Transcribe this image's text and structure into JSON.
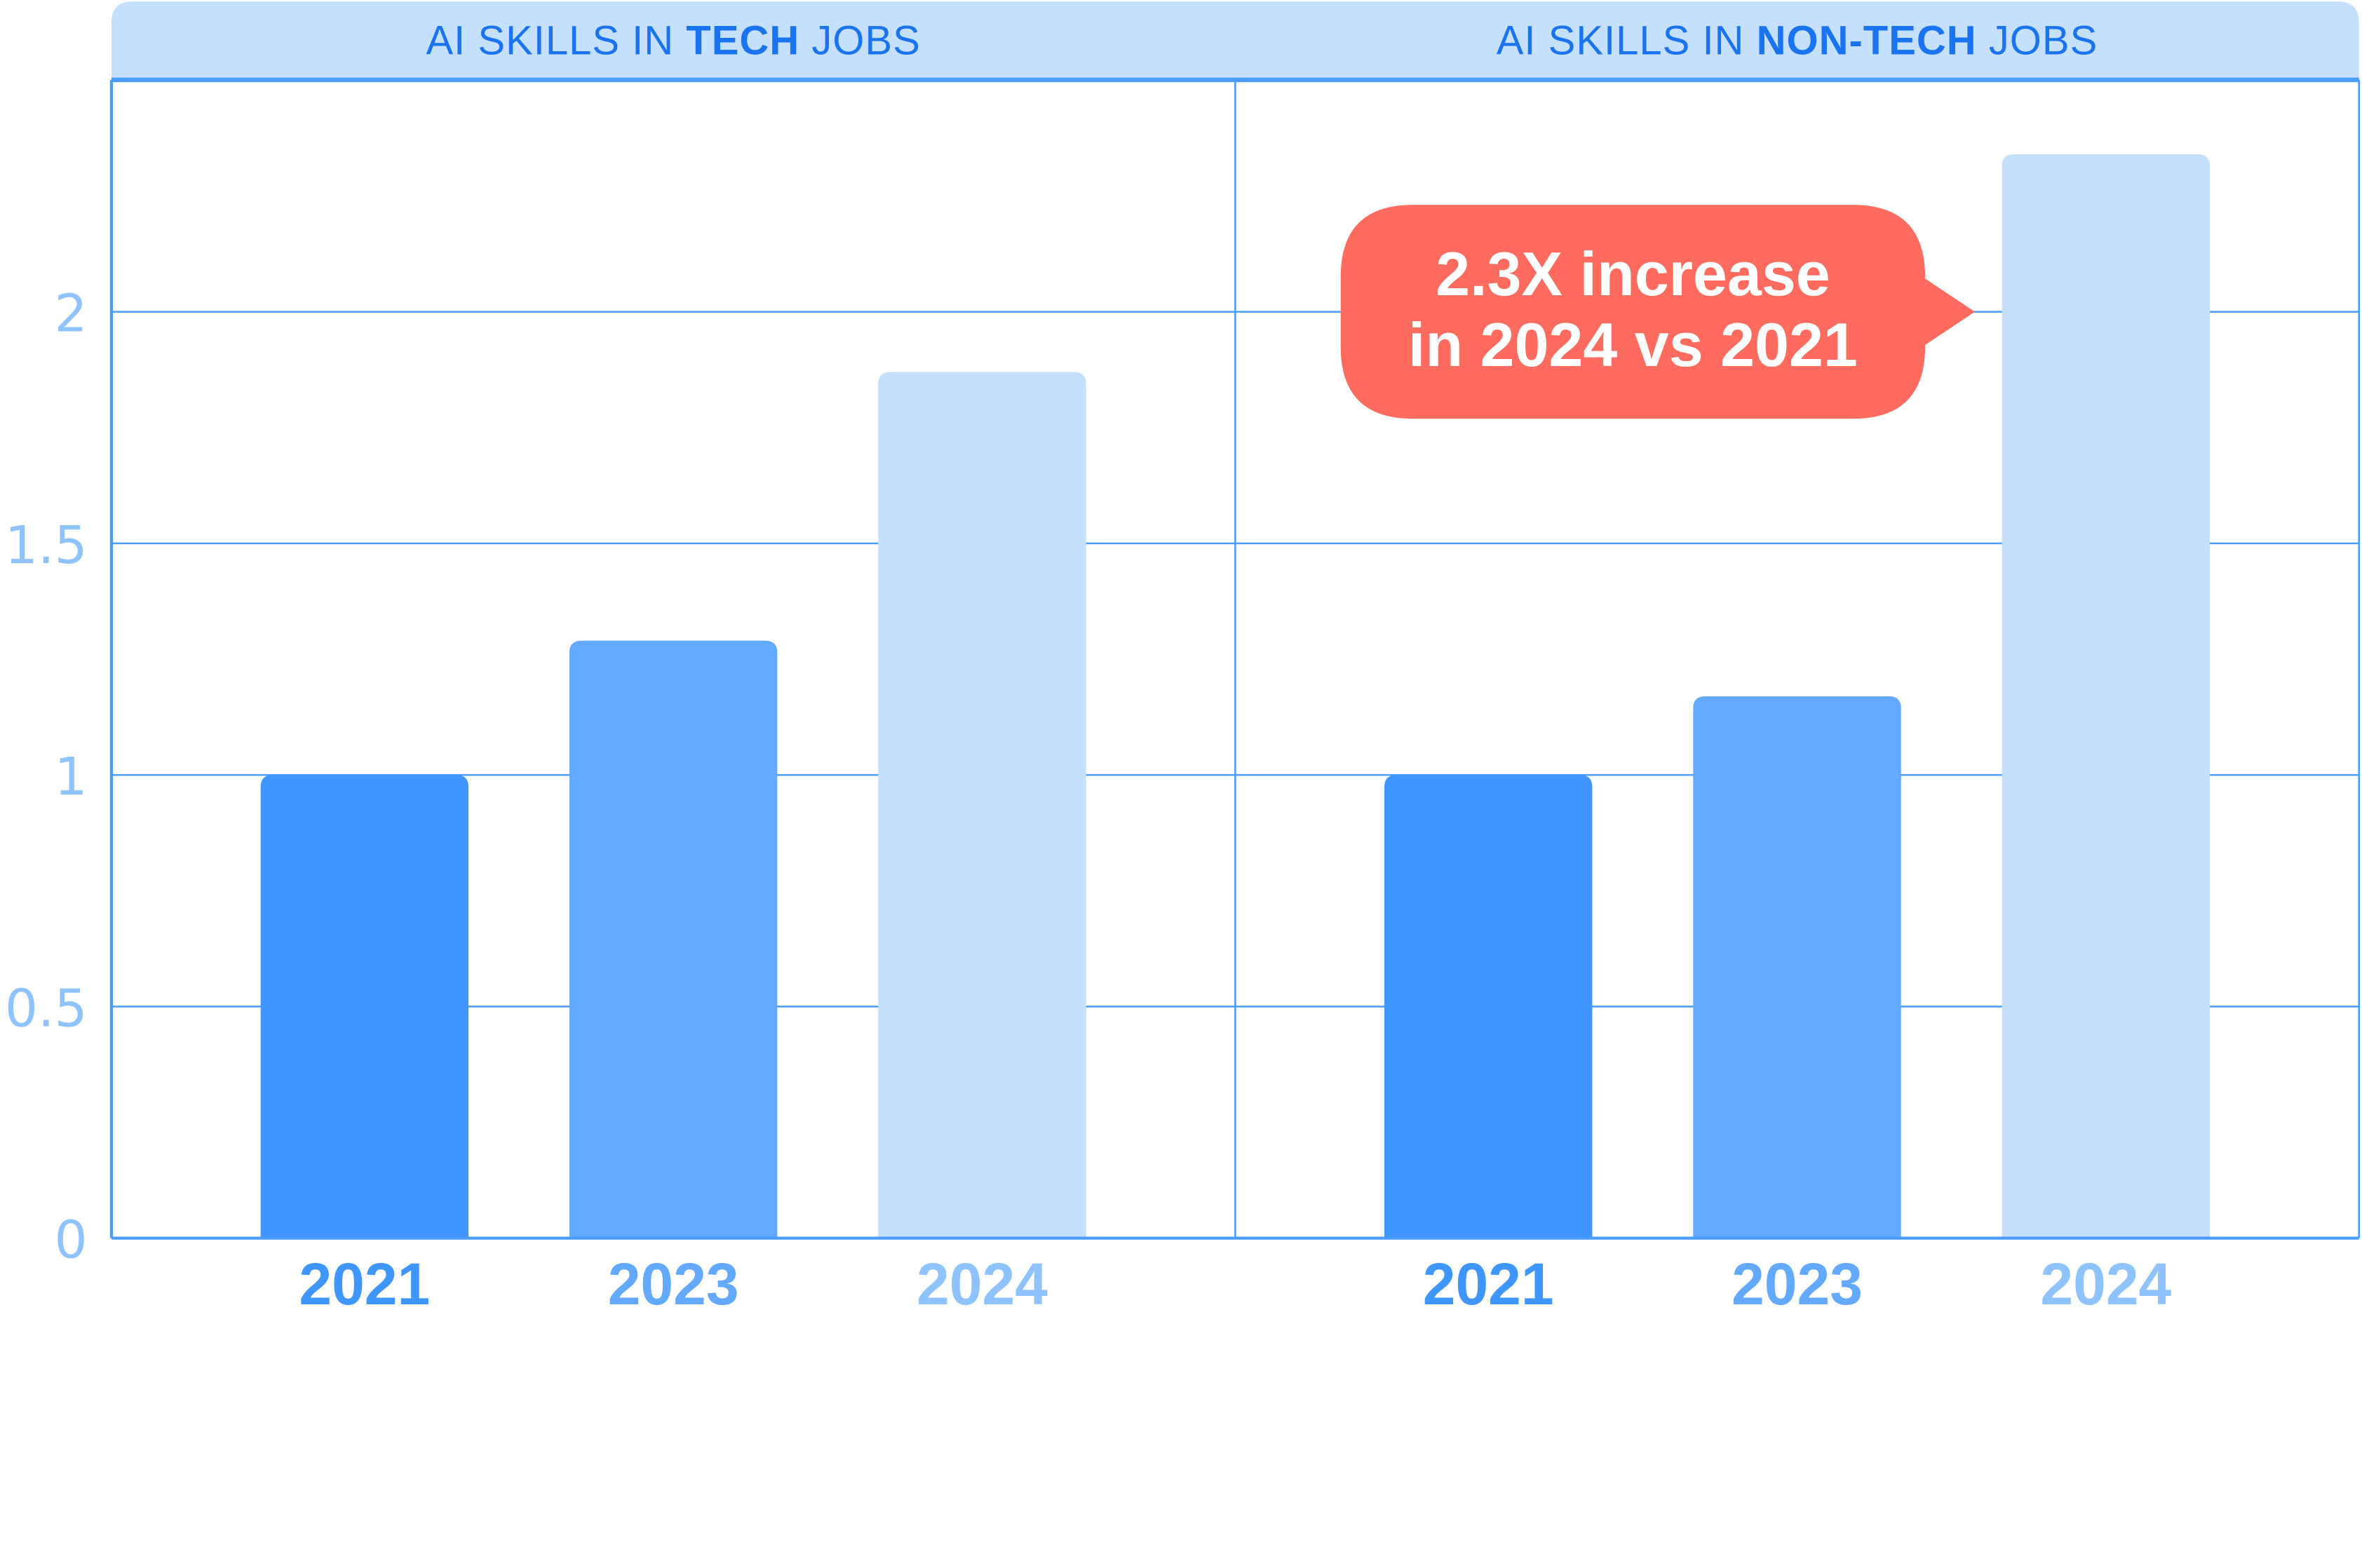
{
  "chart_data": [
    {
      "type": "bar",
      "title_prefix": "AI SKILLS IN ",
      "title_emphasis": "TECH",
      "title_suffix": " JOBS",
      "categories": [
        "2021",
        "2023",
        "2024"
      ],
      "values": [
        1.0,
        1.29,
        1.87
      ],
      "ylim": [
        0,
        2.5
      ],
      "yticks": [
        0,
        0.5,
        1,
        1.5,
        2
      ],
      "ytick_labels": [
        "0",
        "0.5",
        "1",
        "1.5",
        "2"
      ],
      "grid": true,
      "xlabel": "",
      "ylabel": ""
    },
    {
      "type": "bar",
      "title_prefix": "AI SKILLS IN ",
      "title_emphasis": "NON-TECH",
      "title_suffix": " JOBS",
      "categories": [
        "2021",
        "2023",
        "2024"
      ],
      "values": [
        1.0,
        1.17,
        2.34
      ],
      "ylim": [
        0,
        2.5
      ],
      "yticks": [
        0,
        0.5,
        1,
        1.5,
        2
      ],
      "ytick_labels": [
        "0",
        "0.5",
        "1",
        "1.5",
        "2"
      ],
      "grid": true,
      "xlabel": "",
      "ylabel": "",
      "annotation": {
        "lines": [
          "2.3X increase",
          "in 2024 vs 2021"
        ],
        "points_to": "2024"
      }
    }
  ],
  "colors": {
    "bar_2021": "#3f96ff",
    "bar_2023": "#63a9ff",
    "bar_2024": "#c5e0fd",
    "label_2021": "#3f96ff",
    "label_2023": "#63a9ff",
    "label_2024": "#8fc3ff",
    "header_bg": "#c5e0fd",
    "title_text": "#1a73f0",
    "axis_line": "#4a9cff",
    "ytick_text": "#8fc3ff",
    "callout_bg": "#ff6b5f"
  }
}
